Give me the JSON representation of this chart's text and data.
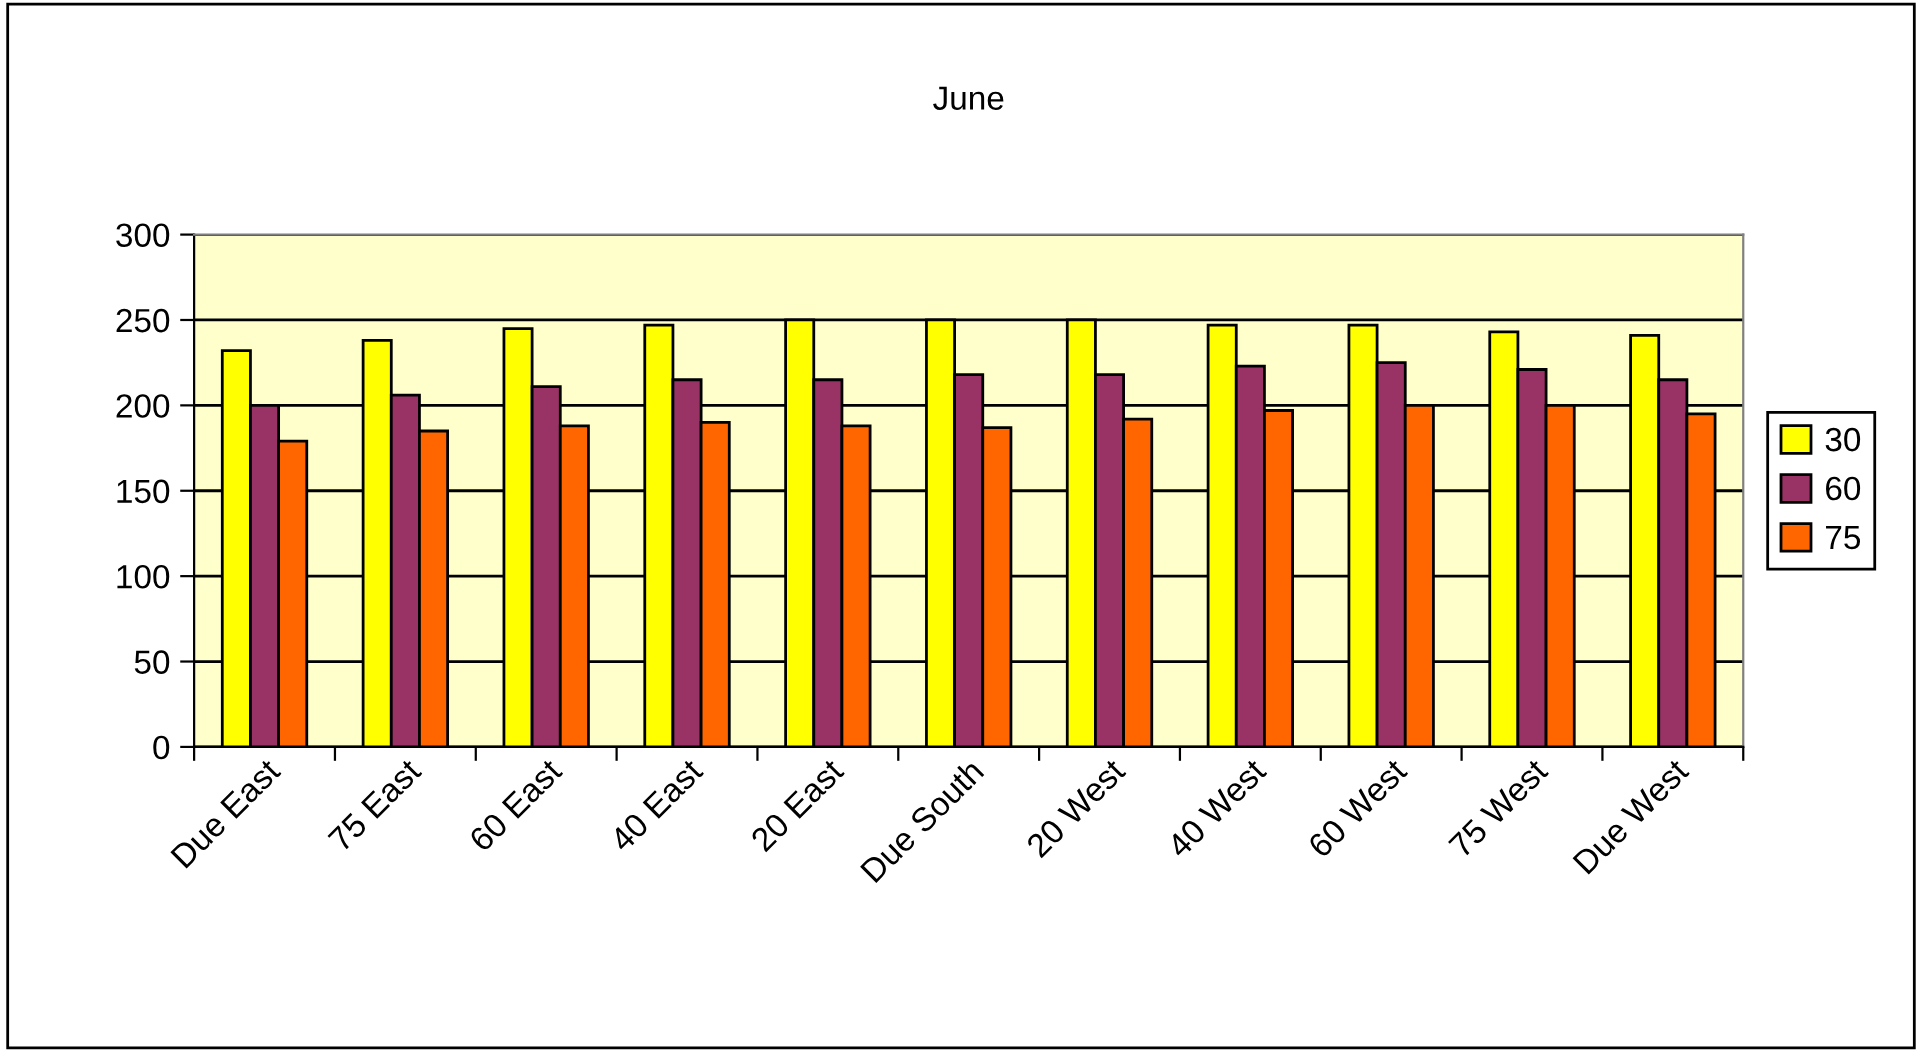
{
  "chart_data": {
    "type": "bar",
    "title": "June",
    "categories": [
      "Due East",
      "75 East",
      "60 East",
      "40 East",
      "20 East",
      "Due South",
      "20 West",
      "40 West",
      "60 West",
      "75 West",
      "Due West"
    ],
    "series": [
      {
        "name": "30",
        "color": "#ffff00",
        "values": [
          232,
          238,
          245,
          247,
          250,
          250,
          250,
          247,
          247,
          243,
          241
        ]
      },
      {
        "name": "60",
        "color": "#993366",
        "values": [
          200,
          206,
          211,
          215,
          215,
          218,
          218,
          223,
          225,
          221,
          215
        ]
      },
      {
        "name": "75",
        "color": "#ff6600",
        "values": [
          179,
          185,
          188,
          190,
          188,
          187,
          192,
          197,
          200,
          200,
          195
        ]
      }
    ],
    "ylim": [
      0,
      300
    ],
    "yticks": [
      0,
      50,
      100,
      150,
      200,
      250,
      300
    ],
    "grid": "y",
    "legend": "right"
  }
}
